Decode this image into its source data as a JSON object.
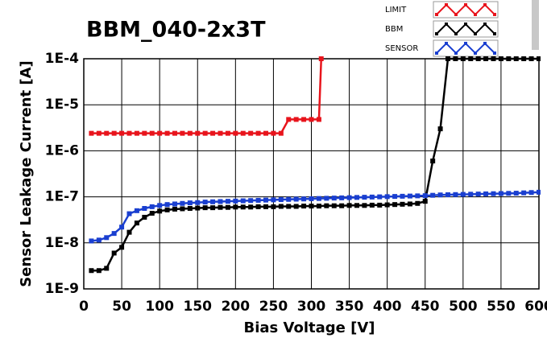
{
  "chart_data": {
    "type": "line",
    "title": "BBM_040-2x3T",
    "x_label": "Bias Voltage [V]",
    "y_label": "Sensor Leakage Current [A]",
    "log_y": true,
    "grid": true,
    "legend": "top-right",
    "xlim": [
      0,
      600
    ],
    "xticks": [
      0,
      50,
      100,
      150,
      200,
      250,
      300,
      350,
      400,
      450,
      500,
      550,
      600
    ],
    "ylim": [
      1e-09,
      0.0001
    ],
    "yticks": [
      {
        "value": 1e-09,
        "label": "1E-9"
      },
      {
        "value": 1e-08,
        "label": "1E-8"
      },
      {
        "value": 1e-07,
        "label": "1E-7"
      },
      {
        "value": 1e-06,
        "label": "1E-6"
      },
      {
        "value": 1e-05,
        "label": "1E-5"
      },
      {
        "value": 0.0001,
        "label": "1E-4"
      }
    ],
    "series": [
      {
        "name": "LIMIT",
        "color": "#e8141c",
        "x": [
          10,
          20,
          30,
          40,
          50,
          60,
          70,
          80,
          90,
          100,
          110,
          120,
          130,
          140,
          150,
          160,
          170,
          180,
          190,
          200,
          210,
          220,
          230,
          240,
          250,
          260,
          270,
          280,
          290,
          300,
          310,
          313
        ],
        "values": [
          2.4e-06,
          2.4e-06,
          2.4e-06,
          2.4e-06,
          2.4e-06,
          2.4e-06,
          2.4e-06,
          2.4e-06,
          2.4e-06,
          2.4e-06,
          2.4e-06,
          2.4e-06,
          2.4e-06,
          2.4e-06,
          2.4e-06,
          2.4e-06,
          2.4e-06,
          2.4e-06,
          2.4e-06,
          2.4e-06,
          2.4e-06,
          2.4e-06,
          2.4e-06,
          2.4e-06,
          2.4e-06,
          2.4e-06,
          4.8e-06,
          4.8e-06,
          4.8e-06,
          4.8e-06,
          4.8e-06,
          0.0001
        ]
      },
      {
        "name": "BBM",
        "color": "#000000",
        "x": [
          10,
          20,
          30,
          40,
          50,
          60,
          70,
          80,
          90,
          100,
          110,
          120,
          130,
          140,
          150,
          160,
          170,
          180,
          190,
          200,
          210,
          220,
          230,
          240,
          250,
          260,
          270,
          280,
          290,
          300,
          310,
          320,
          330,
          340,
          350,
          360,
          370,
          380,
          390,
          400,
          410,
          420,
          430,
          440,
          450,
          460,
          470,
          480,
          490,
          500,
          510,
          520,
          530,
          540,
          550,
          560,
          570,
          580,
          590,
          600
        ],
        "values": [
          2.5e-09,
          2.5e-09,
          2.8e-09,
          6e-09,
          8e-09,
          1.7e-08,
          2.7e-08,
          3.6e-08,
          4.4e-08,
          4.9e-08,
          5.2e-08,
          5.4e-08,
          5.5e-08,
          5.6e-08,
          5.7e-08,
          5.8e-08,
          5.8e-08,
          5.9e-08,
          5.9e-08,
          6e-08,
          6e-08,
          6e-08,
          6.1e-08,
          6.1e-08,
          6.1e-08,
          6.2e-08,
          6.2e-08,
          6.2e-08,
          6.3e-08,
          6.3e-08,
          6.3e-08,
          6.4e-08,
          6.4e-08,
          6.4e-08,
          6.5e-08,
          6.5e-08,
          6.5e-08,
          6.6e-08,
          6.6e-08,
          6.7e-08,
          6.8e-08,
          6.9e-08,
          7e-08,
          7.2e-08,
          8e-08,
          6e-07,
          3e-06,
          0.0001,
          0.0001,
          0.0001,
          0.0001,
          0.0001,
          0.0001,
          0.0001,
          0.0001,
          0.0001,
          0.0001,
          0.0001,
          0.0001,
          0.0001
        ]
      },
      {
        "name": "SENSOR",
        "color": "#1a3fd0",
        "x": [
          10,
          20,
          30,
          40,
          50,
          60,
          70,
          80,
          90,
          100,
          110,
          120,
          130,
          140,
          150,
          160,
          170,
          180,
          190,
          200,
          210,
          220,
          230,
          240,
          250,
          260,
          270,
          280,
          290,
          300,
          310,
          320,
          330,
          340,
          350,
          360,
          370,
          380,
          390,
          400,
          410,
          420,
          430,
          440,
          450,
          460,
          470,
          480,
          490,
          500,
          510,
          520,
          530,
          540,
          550,
          560,
          570,
          580,
          590,
          600
        ],
        "values": [
          1.1e-08,
          1.15e-08,
          1.3e-08,
          1.6e-08,
          2.2e-08,
          4.3e-08,
          5e-08,
          5.6e-08,
          6.1e-08,
          6.5e-08,
          6.8e-08,
          7e-08,
          7.2e-08,
          7.4e-08,
          7.5e-08,
          7.7e-08,
          7.8e-08,
          7.9e-08,
          8e-08,
          8.1e-08,
          8.2e-08,
          8.3e-08,
          8.4e-08,
          8.5e-08,
          8.6e-08,
          8.7e-08,
          8.8e-08,
          8.9e-08,
          9e-08,
          9.1e-08,
          9.2e-08,
          9.3e-08,
          9.4e-08,
          9.5e-08,
          9.6e-08,
          9.7e-08,
          9.8e-08,
          9.9e-08,
          1e-07,
          1.01e-07,
          1.02e-07,
          1.03e-07,
          1.04e-07,
          1.05e-07,
          1.06e-07,
          1.08e-07,
          1.1e-07,
          1.11e-07,
          1.12e-07,
          1.13e-07,
          1.14e-07,
          1.15e-07,
          1.16e-07,
          1.17e-07,
          1.18e-07,
          1.19e-07,
          1.2e-07,
          1.22e-07,
          1.24e-07,
          1.26e-07
        ]
      }
    ]
  }
}
